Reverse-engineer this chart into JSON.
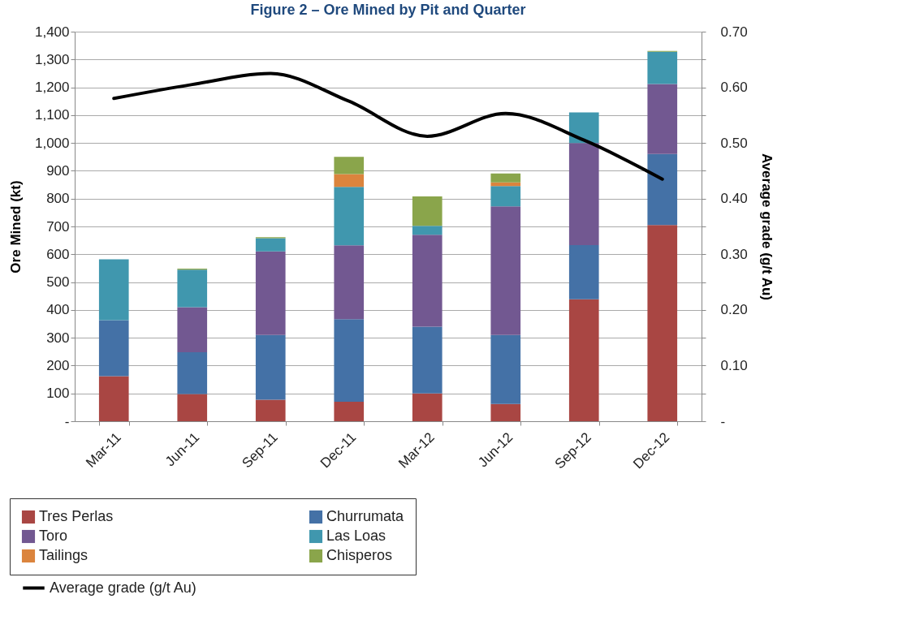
{
  "chart_data": {
    "type": "bar",
    "title": "Figure 2 – Ore Mined by Pit and Quarter",
    "ylabel": "Ore Mined (kt)",
    "y2label": "Average grade (g/t Au)",
    "categories": [
      "Mar-11",
      "Jun-11",
      "Sep-11",
      "Dec-11",
      "Mar-12",
      "Jun-12",
      "Sep-12",
      "Dec-12"
    ],
    "stacked": true,
    "grid": "y",
    "legend": "bottom",
    "ylim": [
      0,
      1400
    ],
    "yticks": [
      {
        "value": 0,
        "label": "-"
      },
      100,
      200,
      300,
      400,
      500,
      600,
      700,
      800,
      900,
      {
        "value": 1000,
        "label": "1,000"
      },
      {
        "value": 1100,
        "label": "1,100"
      },
      {
        "value": 1200,
        "label": "1,200"
      },
      {
        "value": 1300,
        "label": "1,300"
      },
      {
        "value": 1400,
        "label": "1,400"
      }
    ],
    "y2lim": [
      0,
      0.7
    ],
    "y2ticks": [
      {
        "value": 0,
        "label": "-"
      },
      {
        "value": 0.05,
        "label": null
      },
      {
        "value": 0.1,
        "label": "0.10"
      },
      {
        "value": 0.15,
        "label": null
      },
      {
        "value": 0.2,
        "label": "0.20"
      },
      {
        "value": 0.25,
        "label": null
      },
      {
        "value": 0.3,
        "label": "0.30"
      },
      {
        "value": 0.35,
        "label": null
      },
      {
        "value": 0.4,
        "label": "0.40"
      },
      {
        "value": 0.45,
        "label": null
      },
      {
        "value": 0.5,
        "label": "0.50"
      },
      {
        "value": 0.55,
        "label": null
      },
      {
        "value": 0.6,
        "label": "0.60"
      },
      {
        "value": 0.65,
        "label": null
      },
      {
        "value": 0.7,
        "label": "0.70"
      }
    ],
    "series": [
      {
        "name": "Tres Perlas",
        "color": "#a94643",
        "values": [
          162,
          98,
          77,
          70,
          100,
          62,
          438,
          705
        ]
      },
      {
        "name": "Churrumata",
        "color": "#4471a6",
        "values": [
          201,
          150,
          233,
          297,
          240,
          248,
          195,
          255
        ]
      },
      {
        "name": "Toro",
        "color": "#725891",
        "values": [
          0,
          162,
          300,
          265,
          330,
          462,
          367,
          252
        ]
      },
      {
        "name": "Las Loas",
        "color": "#4097ae",
        "values": [
          219,
          135,
          48,
          210,
          32,
          73,
          110,
          116
        ]
      },
      {
        "name": "Tailings",
        "color": "#db843d",
        "values": [
          0,
          0,
          0,
          46,
          0,
          13,
          0,
          0
        ]
      },
      {
        "name": "Chisperos",
        "color": "#8aa54b",
        "values": [
          0,
          3,
          3,
          62,
          106,
          32,
          0,
          3
        ]
      },
      {
        "name": "Average grade (g/t Au)",
        "type": "line",
        "axis": "y2",
        "color": "#000000",
        "marker": "none",
        "line_style": "solid",
        "values": [
          0.58,
          0.605,
          0.625,
          0.575,
          0.512,
          0.553,
          0.505,
          0.435
        ]
      }
    ]
  }
}
